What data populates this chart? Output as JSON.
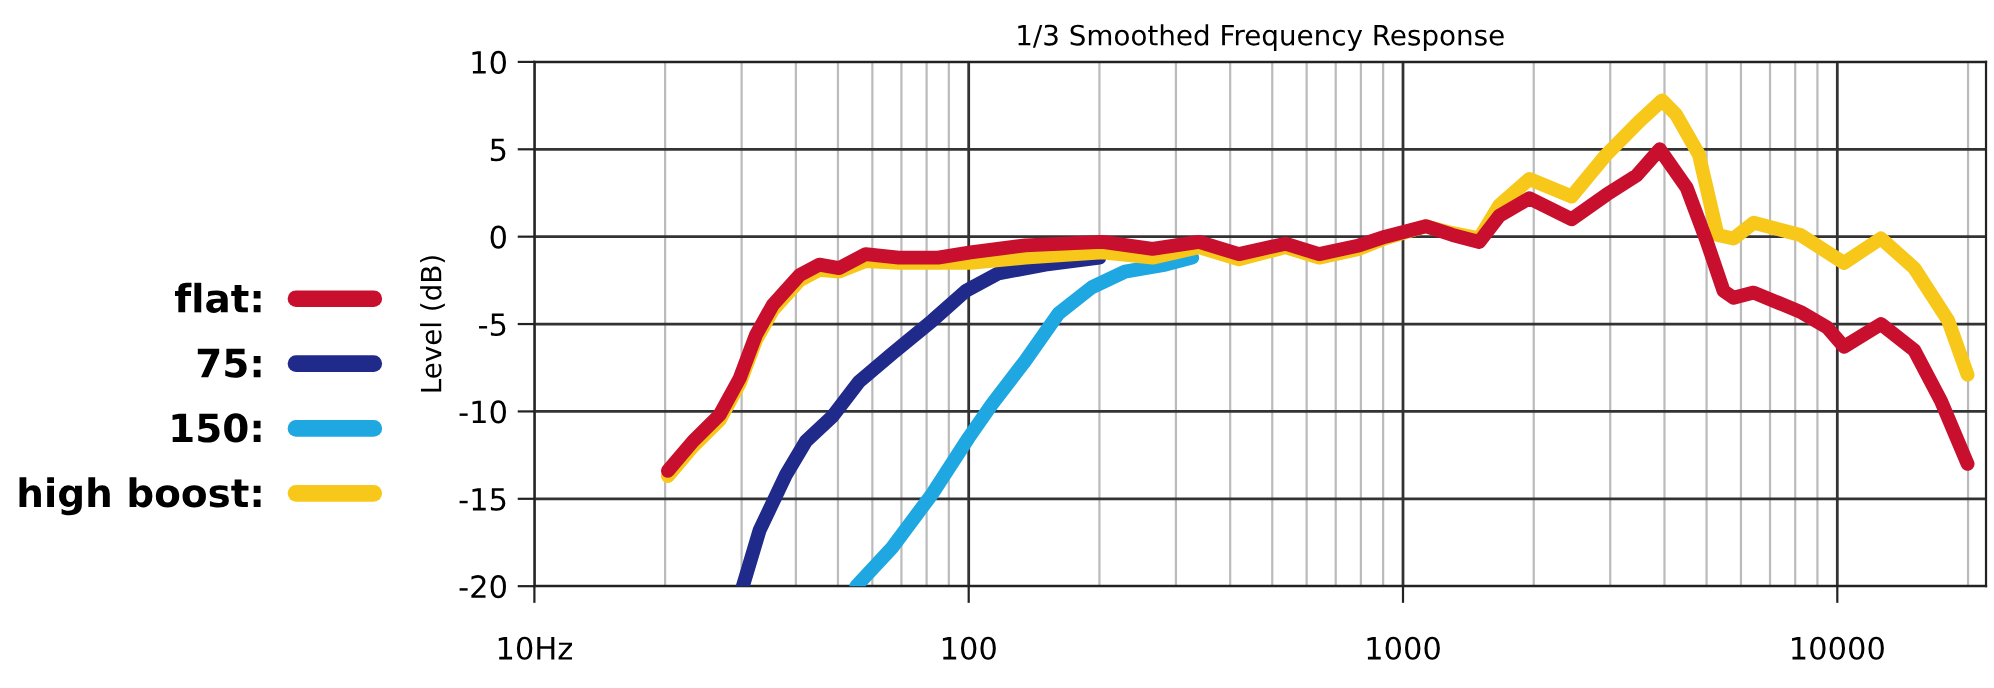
{
  "chart_data": {
    "type": "line",
    "title": "1/3 Smoothed Frequency Response",
    "ylabel": "Level (dB)",
    "log": "x",
    "grid": true,
    "legend": "left",
    "line_style": "solid",
    "marker": "none",
    "xlim": [
      10,
      22000
    ],
    "xticks": [
      {
        "value": 10,
        "label": "10Hz"
      },
      100,
      1000,
      10000
    ],
    "ylim": [
      -20,
      10
    ],
    "yticks": [
      -20,
      -15,
      -10,
      -5,
      0,
      5,
      10
    ],
    "series": [
      {
        "name": "flat:",
        "color": "#c8102e",
        "x": [
          20.3,
          23.2,
          26.7,
          29.7,
          32.4,
          35.4,
          40.8,
          45.3,
          50.3,
          57.9,
          69,
          85,
          101,
          135,
          203,
          265,
          339,
          419,
          536,
          641,
          792,
          910,
          1128,
          1300,
          1498,
          1667,
          1954,
          2445,
          2940,
          3450,
          3900,
          4500,
          5010,
          5470,
          5770,
          6420,
          8220,
          9480,
          10360,
          12600,
          15040,
          17330,
          19950
        ],
        "values": [
          -13.4,
          -11.7,
          -10.2,
          -8.1,
          -5.6,
          -3.9,
          -2.2,
          -1.6,
          -1.8,
          -1.0,
          -1.2,
          -1.2,
          -0.9,
          -0.5,
          -0.3,
          -0.7,
          -0.3,
          -1.0,
          -0.4,
          -1.0,
          -0.5,
          0.0,
          0.6,
          0.1,
          -0.3,
          1.2,
          2.2,
          1.0,
          2.4,
          3.5,
          5.0,
          2.8,
          -0.3,
          -3.1,
          -3.5,
          -3.2,
          -4.3,
          -5.2,
          -6.3,
          -5.0,
          -6.5,
          -9.4,
          -13.0
        ]
      },
      {
        "name": "75:",
        "color": "#1f2a8a",
        "x": [
          30.2,
          33.0,
          38.0,
          42.2,
          48.5,
          55.9,
          66.6,
          82.5,
          98.5,
          117,
          150,
          200
        ],
        "values": [
          -20,
          -16.8,
          -13.6,
          -11.7,
          -10.3,
          -8.3,
          -6.7,
          -4.8,
          -3.1,
          -2.1,
          -1.6,
          -1.2
        ]
      },
      {
        "name": "150:",
        "color": "#1ea7e1",
        "x": [
          55.1,
          66.6,
          82.5,
          100,
          113,
          135,
          161,
          192,
          229,
          284,
          327
        ],
        "values": [
          -20,
          -17.8,
          -14.7,
          -11.5,
          -9.6,
          -7.1,
          -4.4,
          -2.9,
          -2.0,
          -1.6,
          -1.2
        ]
      },
      {
        "name": "high boost:",
        "color": "#f7c81a",
        "x": [
          20.3,
          23.2,
          26.7,
          29.7,
          32.4,
          35.4,
          40.8,
          45.3,
          50.3,
          57.9,
          69,
          85,
          101,
          135,
          203,
          265,
          339,
          419,
          536,
          641,
          792,
          910,
          1128,
          1300,
          1498,
          1667,
          1954,
          2445,
          2940,
          3500,
          3950,
          4250,
          4800,
          5300,
          5770,
          6420,
          8220,
          10360,
          12600,
          15040,
          18000,
          19950
        ],
        "values": [
          -13.7,
          -12.0,
          -10.5,
          -8.4,
          -5.9,
          -4.2,
          -2.5,
          -1.9,
          -2.0,
          -1.4,
          -1.5,
          -1.5,
          -1.5,
          -1.2,
          -0.9,
          -1.2,
          -0.6,
          -1.3,
          -0.6,
          -1.2,
          -0.7,
          -0.1,
          0.6,
          0.2,
          -0.1,
          1.8,
          3.3,
          2.3,
          4.7,
          6.6,
          7.8,
          7.0,
          4.7,
          0.1,
          -0.1,
          0.8,
          0.1,
          -1.5,
          -0.1,
          -1.8,
          -4.8,
          -7.9
        ]
      }
    ]
  }
}
